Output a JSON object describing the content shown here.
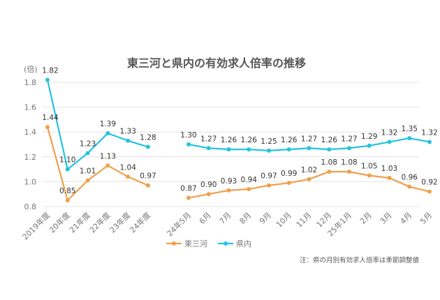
{
  "chart_data": {
    "type": "line",
    "title": "東三河と県内の有効求人倍率の推移",
    "ylabel": "(倍)",
    "ylim": [
      0.8,
      1.8
    ],
    "yticks": [
      "1.8",
      "1.6",
      "1.4",
      "1.2",
      "1.0",
      "0.8"
    ],
    "grid": true,
    "legend_position": "bottom",
    "note": "注：県の月別有効求人倍率は季節調整値",
    "groups": [
      {
        "categories": [
          "2019年度",
          "20年度",
          "21年度",
          "22年度",
          "23年度",
          "24年度"
        ],
        "series": [
          {
            "name": "東三河",
            "color": "#f0a04b",
            "values": [
              1.44,
              0.85,
              1.01,
              1.13,
              1.04,
              0.97
            ]
          },
          {
            "name": "県内",
            "color": "#22c4e0",
            "values": [
              1.82,
              1.1,
              1.23,
              1.39,
              1.33,
              1.28
            ]
          }
        ]
      },
      {
        "categories": [
          "24年5月",
          "6月",
          "7月",
          "8月",
          "9月",
          "10月",
          "11月",
          "12月",
          "25年1月",
          "2月",
          "3月",
          "4月",
          "5月"
        ],
        "series": [
          {
            "name": "東三河",
            "color": "#f0a04b",
            "values": [
              0.87,
              0.9,
              0.93,
              0.94,
              0.97,
              0.99,
              1.02,
              1.08,
              1.08,
              1.05,
              1.03,
              0.96,
              0.92
            ]
          },
          {
            "name": "県内",
            "color": "#22c4e0",
            "values": [
              1.3,
              1.27,
              1.26,
              1.26,
              1.25,
              1.26,
              1.27,
              1.26,
              1.27,
              1.29,
              1.32,
              1.35,
              1.32
            ]
          }
        ]
      }
    ],
    "legend": [
      {
        "name": "東三河",
        "color": "#f0a04b"
      },
      {
        "name": "県内",
        "color": "#22c4e0"
      }
    ]
  }
}
